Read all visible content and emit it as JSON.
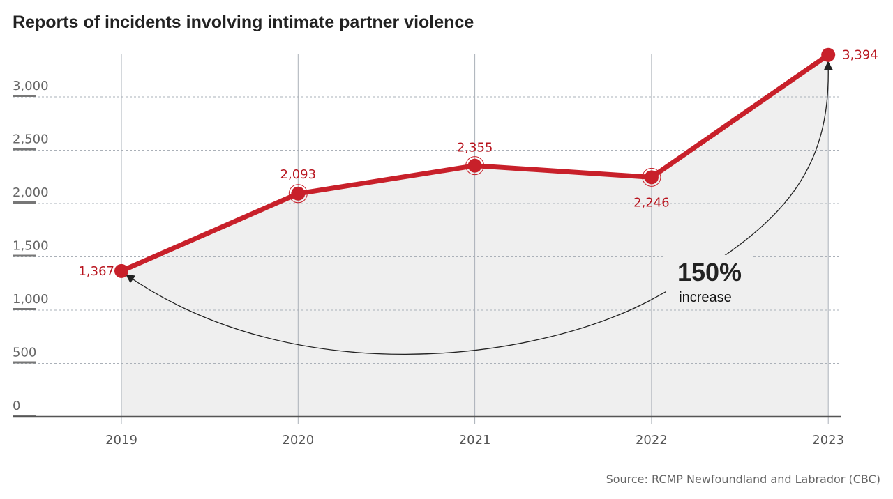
{
  "chart_data": {
    "type": "line",
    "title": "Reports of incidents involving intimate partner violence",
    "categories": [
      "2019",
      "2020",
      "2021",
      "2022",
      "2023"
    ],
    "series": [
      {
        "values": [
          1367,
          2093,
          2355,
          2246,
          3394
        ]
      }
    ],
    "data_labels": [
      "1,367",
      "2,093",
      "2,355",
      "2,246",
      "3,394"
    ],
    "yticks": [
      0,
      500,
      1000,
      1500,
      2000,
      2500,
      3000
    ],
    "ytick_labels": [
      "0",
      "500",
      "1,000",
      "1,500",
      "2,000",
      "2,500",
      "3,000"
    ],
    "ylim": [
      0,
      3394
    ],
    "grid": true,
    "annotation": {
      "value": "150%",
      "text": "increase"
    },
    "source": "Source: RCMP Newfoundland and Labrador (CBC)",
    "colors": {
      "line": "#c8202a",
      "area": "#efefef",
      "grid": "#aab0b8",
      "label": "#b8141e"
    }
  }
}
